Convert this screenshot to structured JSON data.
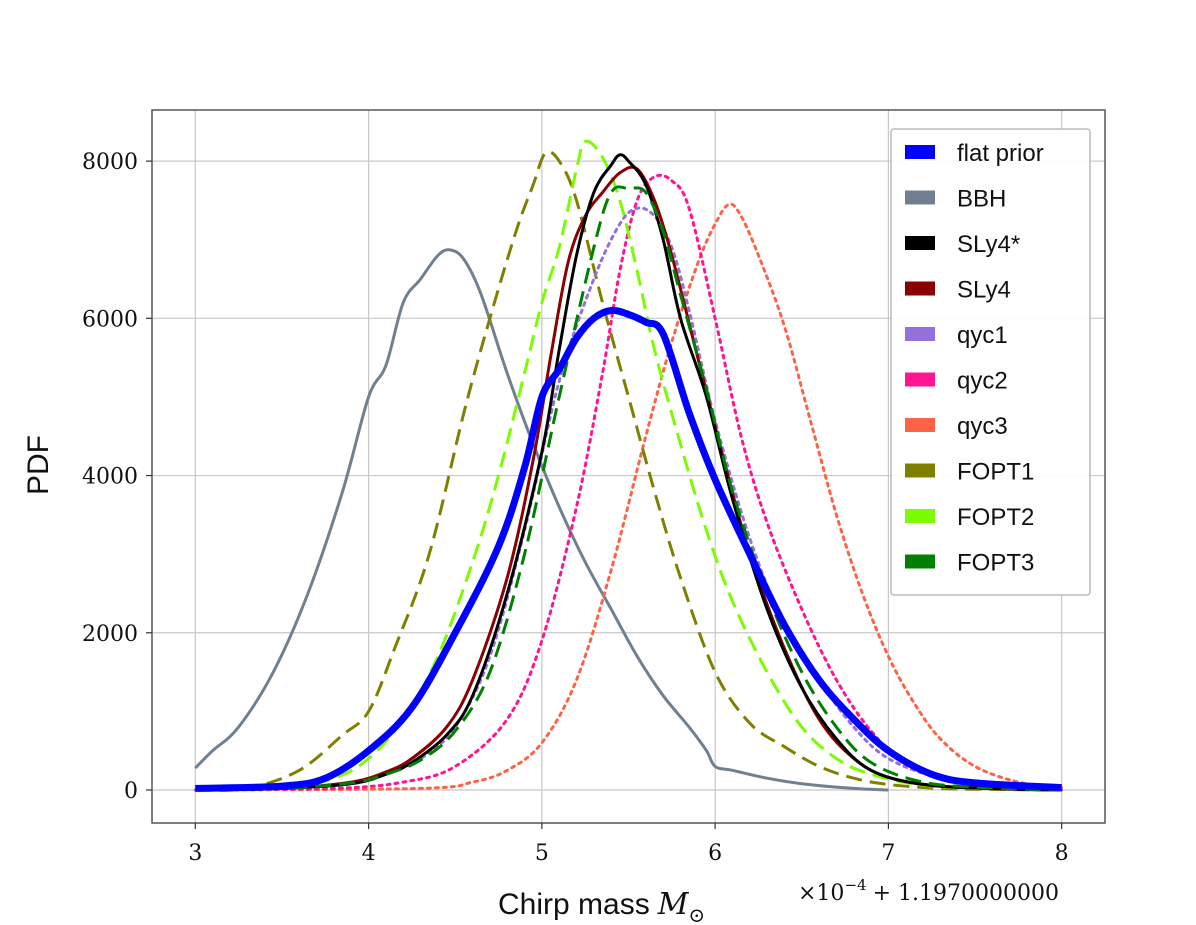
{
  "chart_data": {
    "type": "line",
    "title": "",
    "xlabel": "Chirp mass",
    "xlabel_unit": "M",
    "xlabel_unit_sub": "⊙",
    "ylabel": "PDF",
    "x_offset_label": "×10",
    "x_offset_exp": "−4",
    "x_offset_rest": "+ 1.1970000000",
    "xlim": [
      2.75,
      8.25
    ],
    "ylim": [
      -420,
      8650
    ],
    "xticks": [
      3,
      4,
      5,
      6,
      7,
      8
    ],
    "yticks": [
      0,
      2000,
      4000,
      6000,
      8000
    ],
    "grid": true,
    "legend_position": "top-right",
    "series": [
      {
        "name": "flat prior",
        "color": "#0000ff",
        "style": "solid",
        "width": "thick",
        "x": [
          3.0,
          3.5,
          3.75,
          4.0,
          4.25,
          4.5,
          4.75,
          4.9,
          5.0,
          5.1,
          5.2,
          5.3,
          5.4,
          5.5,
          5.6,
          5.7,
          5.85,
          6.0,
          6.2,
          6.4,
          6.6,
          6.8,
          7.0,
          7.25,
          7.5,
          8.0
        ],
        "y": [
          20,
          50,
          150,
          500,
          1050,
          2000,
          3100,
          4100,
          5000,
          5350,
          5750,
          6000,
          6100,
          6050,
          5950,
          5800,
          4800,
          3950,
          3000,
          2100,
          1400,
          900,
          500,
          200,
          90,
          30
        ]
      },
      {
        "name": "BBH",
        "color": "#708090",
        "style": "solid",
        "width": "normal",
        "x": [
          3.0,
          3.1,
          3.25,
          3.45,
          3.65,
          3.85,
          4.0,
          4.1,
          4.2,
          4.3,
          4.4,
          4.47,
          4.55,
          4.65,
          4.8,
          4.95,
          5.1,
          5.25,
          5.4,
          5.55,
          5.7,
          5.85,
          5.95,
          6.0,
          6.1,
          6.3,
          6.5,
          6.8,
          7.0
        ],
        "y": [
          280,
          500,
          800,
          1500,
          2500,
          3800,
          5000,
          5400,
          6200,
          6500,
          6800,
          6870,
          6750,
          6300,
          5300,
          4400,
          3600,
          2900,
          2300,
          1700,
          1200,
          800,
          500,
          300,
          250,
          150,
          80,
          20,
          0
        ]
      },
      {
        "name": "SLy4*",
        "color": "#000000",
        "style": "solid",
        "width": "normal",
        "x": [
          3.0,
          3.5,
          3.9,
          4.1,
          4.25,
          4.45,
          4.6,
          4.8,
          5.0,
          5.1,
          5.2,
          5.3,
          5.4,
          5.45,
          5.5,
          5.6,
          5.7,
          5.8,
          5.95,
          6.1,
          6.3,
          6.5,
          6.7,
          6.9,
          7.2,
          7.6,
          8.0
        ],
        "y": [
          0,
          20,
          80,
          200,
          350,
          700,
          1200,
          2500,
          4300,
          5600,
          6800,
          7600,
          7950,
          8080,
          8000,
          7700,
          7000,
          6000,
          5000,
          3700,
          2300,
          1300,
          650,
          250,
          70,
          20,
          0
        ]
      },
      {
        "name": "SLy4",
        "color": "#8b0000",
        "style": "solid",
        "width": "normal",
        "x": [
          3.0,
          3.5,
          3.9,
          4.1,
          4.25,
          4.45,
          4.6,
          4.8,
          4.95,
          5.05,
          5.15,
          5.25,
          5.35,
          5.45,
          5.55,
          5.65,
          5.75,
          5.9,
          6.05,
          6.2,
          6.4,
          6.6,
          6.8,
          7.0,
          7.3,
          7.7,
          8.0
        ],
        "y": [
          0,
          20,
          100,
          230,
          400,
          800,
          1400,
          2700,
          4200,
          5500,
          6700,
          7300,
          7600,
          7850,
          7900,
          7500,
          6800,
          5500,
          4200,
          3000,
          1800,
          900,
          400,
          160,
          50,
          10,
          0
        ]
      },
      {
        "name": "qyc1",
        "color": "#9370db",
        "style": "dotted",
        "width": "normal",
        "x": [
          3.0,
          3.5,
          3.9,
          4.1,
          4.3,
          4.5,
          4.7,
          4.9,
          5.1,
          5.3,
          5.45,
          5.55,
          5.65,
          5.75,
          5.85,
          6.0,
          6.2,
          6.4,
          6.6,
          6.8,
          7.0,
          7.3,
          7.6,
          8.0
        ],
        "y": [
          0,
          20,
          80,
          200,
          400,
          800,
          1700,
          3300,
          5200,
          6500,
          7200,
          7400,
          7300,
          6900,
          6100,
          4700,
          3200,
          2100,
          1400,
          800,
          400,
          150,
          50,
          0
        ]
      },
      {
        "name": "qyc2",
        "color": "#ff1493",
        "style": "dotted",
        "width": "normal",
        "x": [
          3.0,
          3.8,
          4.2,
          4.5,
          4.8,
          5.0,
          5.2,
          5.35,
          5.45,
          5.55,
          5.65,
          5.75,
          5.85,
          6.0,
          6.15,
          6.3,
          6.5,
          6.7,
          6.9,
          7.1,
          7.4,
          7.7,
          8.0
        ],
        "y": [
          0,
          20,
          100,
          300,
          900,
          1900,
          3600,
          5300,
          6600,
          7500,
          7800,
          7750,
          7400,
          6000,
          4500,
          3400,
          2300,
          1400,
          750,
          350,
          120,
          30,
          0
        ]
      },
      {
        "name": "qyc3",
        "color": "#ff6347",
        "style": "dotted",
        "width": "normal",
        "x": [
          3.0,
          4.3,
          4.6,
          4.8,
          5.0,
          5.2,
          5.4,
          5.6,
          5.75,
          5.9,
          6.0,
          6.08,
          6.15,
          6.25,
          6.4,
          6.55,
          6.7,
          6.85,
          7.0,
          7.15,
          7.3,
          7.5,
          7.75,
          8.0
        ],
        "y": [
          0,
          20,
          100,
          250,
          600,
          1400,
          2800,
          4500,
          5700,
          6700,
          7200,
          7450,
          7300,
          6800,
          5900,
          4700,
          3500,
          2500,
          1700,
          1100,
          650,
          300,
          100,
          30
        ]
      },
      {
        "name": "FOPT1",
        "color": "#808000",
        "style": "dashed",
        "width": "normal",
        "x": [
          3.0,
          3.3,
          3.6,
          3.85,
          4.0,
          4.15,
          4.35,
          4.55,
          4.7,
          4.85,
          4.95,
          5.02,
          5.1,
          5.2,
          5.35,
          5.5,
          5.65,
          5.8,
          6.0,
          6.2,
          6.4,
          6.6,
          6.8,
          7.0,
          7.3,
          7.7,
          8.0
        ],
        "y": [
          0,
          20,
          250,
          700,
          1000,
          1800,
          3000,
          4800,
          6000,
          7100,
          7700,
          8100,
          8000,
          7500,
          6200,
          5000,
          3800,
          2700,
          1500,
          850,
          550,
          300,
          150,
          70,
          20,
          5,
          0
        ]
      },
      {
        "name": "FOPT2",
        "color": "#7cfc00",
        "style": "dashed",
        "width": "normal",
        "x": [
          3.0,
          3.5,
          3.8,
          4.0,
          4.2,
          4.4,
          4.6,
          4.75,
          4.9,
          5.0,
          5.1,
          5.2,
          5.25,
          5.35,
          5.45,
          5.55,
          5.65,
          5.8,
          5.95,
          6.1,
          6.3,
          6.5,
          6.7,
          6.9,
          7.2,
          7.6,
          8.0
        ],
        "y": [
          0,
          20,
          150,
          400,
          900,
          1700,
          2900,
          4000,
          5300,
          6200,
          6900,
          7900,
          8250,
          8050,
          7500,
          6600,
          5600,
          4400,
          3300,
          2400,
          1500,
          800,
          400,
          200,
          60,
          15,
          0
        ]
      },
      {
        "name": "FOPT3",
        "color": "#008000",
        "style": "dashed",
        "width": "normal",
        "x": [
          3.0,
          3.5,
          3.9,
          4.1,
          4.3,
          4.5,
          4.7,
          4.9,
          5.1,
          5.3,
          5.4,
          5.5,
          5.6,
          5.7,
          5.8,
          5.95,
          6.1,
          6.3,
          6.5,
          6.7,
          6.9,
          7.2,
          7.6,
          8.0
        ],
        "y": [
          0,
          20,
          90,
          200,
          380,
          750,
          1500,
          3000,
          5000,
          6900,
          7600,
          7650,
          7600,
          7100,
          6300,
          5100,
          3800,
          2500,
          1500,
          800,
          350,
          100,
          25,
          0
        ]
      }
    ]
  }
}
